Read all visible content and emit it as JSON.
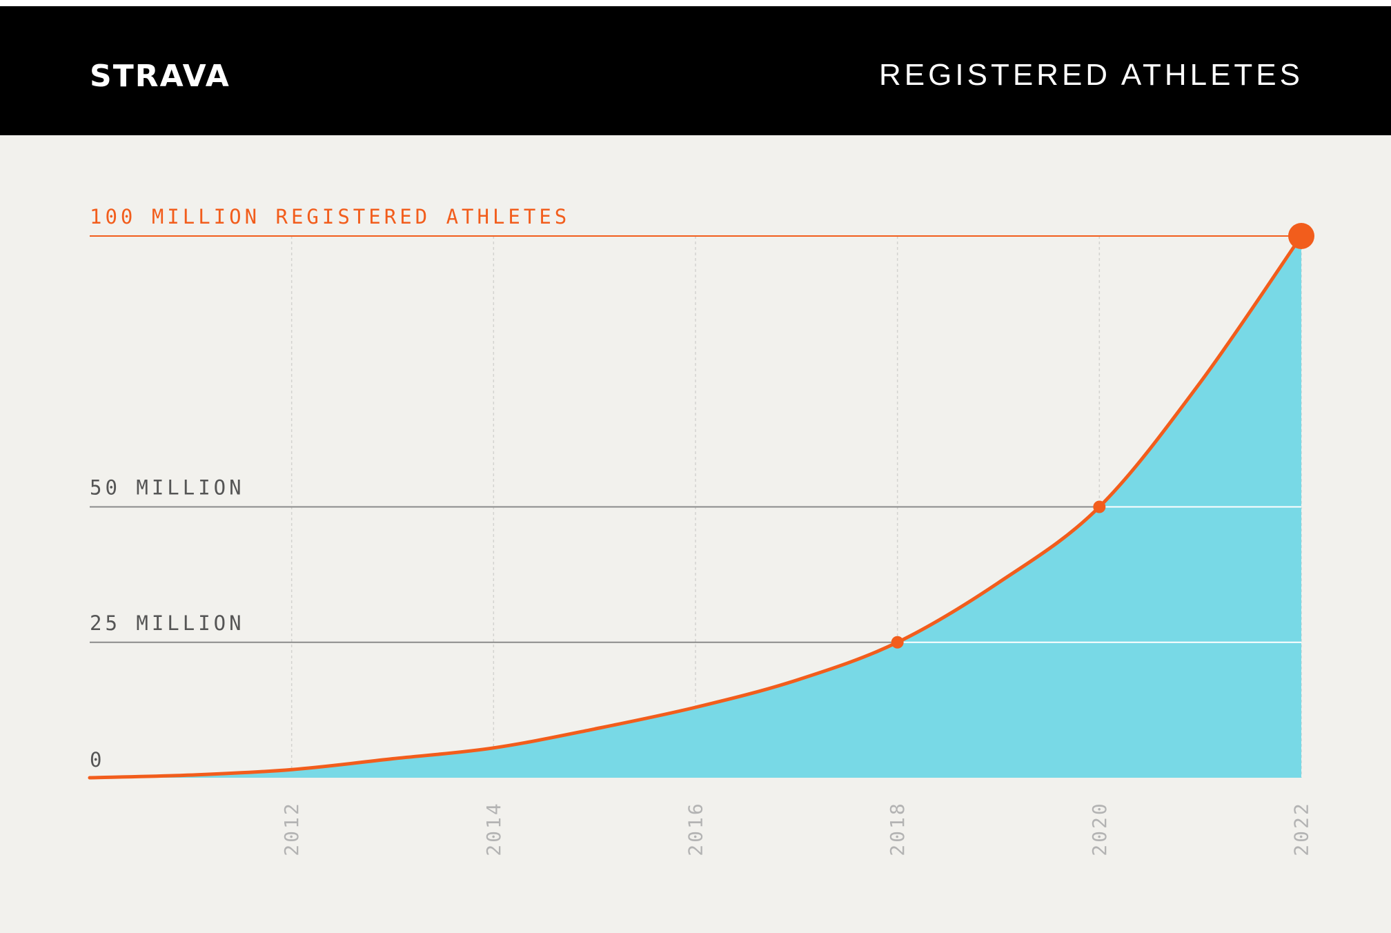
{
  "header": {
    "logo": "STRAVA",
    "title": "REGISTERED ATHLETES"
  },
  "colors": {
    "header_bg": "#000000",
    "chart_bg": "#f2f1ed",
    "accent": "#f25d1c",
    "fill": "#78d9e6",
    "ref_line": "#8a8a8a",
    "grid": "#d3d3d0",
    "tick_text": "#b3b3b3",
    "label_text": "#555555"
  },
  "chart_data": {
    "type": "area",
    "title": "REGISTERED ATHLETES",
    "xlabel": "",
    "ylabel": "",
    "x_ticks": [
      2012,
      2014,
      2016,
      2018,
      2020,
      2022
    ],
    "xlim": [
      2010,
      2022
    ],
    "ylim": [
      0,
      100
    ],
    "y_unit": "million",
    "grid": "vertical dashed at x ticks",
    "series": [
      {
        "x": [
          2010,
          2011,
          2012,
          2013,
          2014,
          2015,
          2016,
          2017,
          2018,
          2019,
          2020,
          2021,
          2022
        ],
        "values": [
          0,
          0.5,
          1.5,
          3.5,
          5.5,
          9,
          13,
          18,
          25,
          36,
          50,
          73,
          100
        ]
      }
    ],
    "reference_lines": [
      {
        "y": 100,
        "label": "100 MILLION REGISTERED ATHLETES",
        "highlight": true
      },
      {
        "y": 50,
        "label": "50 MILLION",
        "highlight": false
      },
      {
        "y": 25,
        "label": "25 MILLION",
        "highlight": false
      },
      {
        "y": 0,
        "label": "0",
        "highlight": false
      }
    ],
    "markers": [
      {
        "x": 2018,
        "y": 25,
        "size": "small"
      },
      {
        "x": 2020,
        "y": 50,
        "size": "small"
      },
      {
        "x": 2022,
        "y": 100,
        "size": "large"
      }
    ]
  }
}
